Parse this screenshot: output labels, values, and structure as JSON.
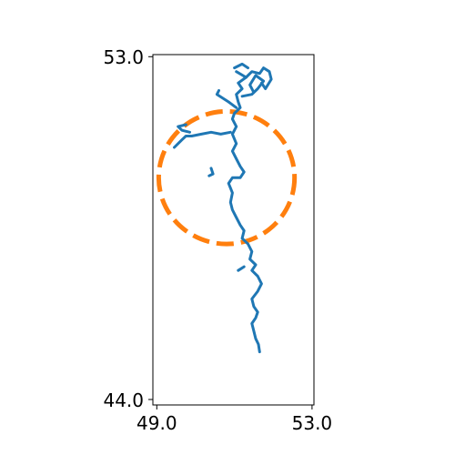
{
  "chart_data": {
    "type": "line",
    "title": "",
    "xlabel": "",
    "ylabel": "",
    "xlim": [
      48.9,
      53.05
    ],
    "ylim": [
      43.85,
      53.1
    ],
    "x_ticks": [
      {
        "value": 49.0,
        "label": "49.0"
      },
      {
        "value": 53.0,
        "label": "53.0"
      }
    ],
    "y_ticks": [
      {
        "value": 53.0,
        "label": "53.0"
      },
      {
        "value": 44.0,
        "label": "44.0"
      }
    ],
    "grid": false,
    "series": [
      {
        "color": "#1f77b4",
        "style": "solid",
        "polylines": [
          [
            [
              51.65,
              45.25
            ],
            [
              51.62,
              45.45
            ],
            [
              51.55,
              45.6
            ],
            [
              51.5,
              45.8
            ],
            [
              51.45,
              46.0
            ],
            [
              51.55,
              46.15
            ],
            [
              51.6,
              46.3
            ],
            [
              51.5,
              46.45
            ],
            [
              51.45,
              46.65
            ],
            [
              51.6,
              46.85
            ],
            [
              51.7,
              47.05
            ],
            [
              51.6,
              47.25
            ],
            [
              51.45,
              47.4
            ],
            [
              51.55,
              47.55
            ],
            [
              51.4,
              47.7
            ],
            [
              51.45,
              47.9
            ],
            [
              51.35,
              48.1
            ],
            [
              51.2,
              48.25
            ],
            [
              51.25,
              48.45
            ],
            [
              51.15,
              48.6
            ],
            [
              51.05,
              48.8
            ],
            [
              50.95,
              49.0
            ],
            [
              50.9,
              49.2
            ],
            [
              50.95,
              49.45
            ],
            [
              50.85,
              49.7
            ],
            [
              50.95,
              49.85
            ],
            [
              51.15,
              49.85
            ],
            [
              51.25,
              50.0
            ],
            [
              51.15,
              50.15
            ],
            [
              51.05,
              50.35
            ],
            [
              50.95,
              50.55
            ],
            [
              51.05,
              50.75
            ],
            [
              50.95,
              51.0
            ],
            [
              51.05,
              51.2
            ],
            [
              50.95,
              51.4
            ],
            [
              51.0,
              51.55
            ],
            [
              51.15,
              51.7
            ],
            [
              51.1,
              51.85
            ],
            [
              51.05,
              52.05
            ],
            [
              51.2,
              52.2
            ],
            [
              51.1,
              52.35
            ],
            [
              51.3,
              52.5
            ],
            [
              51.05,
              52.65
            ]
          ],
          [
            [
              51.05,
              51.7
            ],
            [
              50.85,
              51.85
            ],
            [
              50.7,
              51.95
            ],
            [
              50.55,
              52.05
            ],
            [
              50.6,
              52.15
            ]
          ],
          [
            [
              51.2,
              52.0
            ],
            [
              51.45,
              52.05
            ],
            [
              51.6,
              52.2
            ],
            [
              51.75,
              52.4
            ],
            [
              51.55,
              52.55
            ],
            [
              51.4,
              52.3
            ],
            [
              51.5,
              52.1
            ]
          ],
          [
            [
              51.3,
              52.5
            ],
            [
              51.45,
              52.65
            ],
            [
              51.65,
              52.6
            ],
            [
              51.75,
              52.75
            ],
            [
              51.9,
              52.65
            ],
            [
              51.95,
              52.45
            ],
            [
              51.8,
              52.2
            ],
            [
              51.7,
              52.35
            ]
          ],
          [
            [
              51.0,
              52.75
            ],
            [
              51.2,
              52.85
            ],
            [
              51.35,
              52.75
            ]
          ],
          [
            [
              50.9,
              51.05
            ],
            [
              50.65,
              51.0
            ],
            [
              50.4,
              51.05
            ],
            [
              50.15,
              51.0
            ],
            [
              49.9,
              50.95
            ],
            [
              49.75,
              50.95
            ],
            [
              49.65,
              50.85
            ],
            [
              49.55,
              50.75
            ],
            [
              49.45,
              50.65
            ]
          ],
          [
            [
              49.75,
              51.25
            ],
            [
              49.55,
              51.2
            ],
            [
              49.65,
              51.1
            ],
            [
              49.85,
              51.05
            ]
          ],
          [
            [
              50.35,
              49.9
            ],
            [
              50.45,
              49.95
            ],
            [
              50.4,
              50.1
            ]
          ],
          [
            [
              51.1,
              47.4
            ],
            [
              51.25,
              47.5
            ]
          ]
        ]
      },
      {
        "color": "#ff7f0e",
        "style": "dashed",
        "shape": "circle",
        "center": [
          50.8,
          49.85
        ],
        "radius": 1.75
      }
    ]
  }
}
